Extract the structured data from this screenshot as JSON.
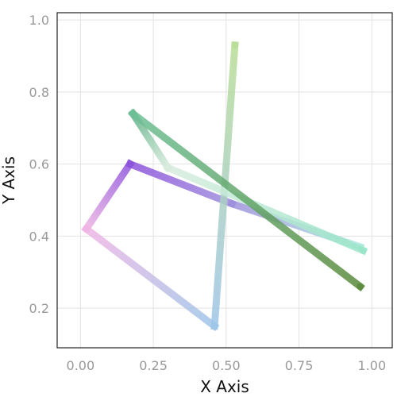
{
  "chart_data": {
    "type": "line",
    "title": "",
    "xlabel": "X Axis",
    "ylabel": "Y Axis",
    "xlim": [
      -0.08,
      1.07
    ],
    "ylim": [
      0.09,
      1.02
    ],
    "x_ticks": [
      0.0,
      0.25,
      0.5,
      0.75,
      1.0
    ],
    "x_tick_labels": [
      "0.00",
      "0.25",
      "0.50",
      "0.75",
      "1.00"
    ],
    "y_ticks": [
      0.2,
      0.4,
      0.6,
      0.8,
      1.0
    ],
    "y_tick_labels": [
      "0.2",
      "0.4",
      "0.6",
      "0.8",
      "1.0"
    ],
    "grid": true,
    "legend": "none",
    "series": [
      {
        "x": [
          0.02,
          0.17,
          0.52,
          0.96
        ],
        "y": [
          0.42,
          0.6,
          0.49,
          0.37
        ],
        "colors": [
          "#efb5e2",
          "#8c52dc",
          "#9e8fdc",
          "#aee9dd"
        ]
      },
      {
        "x": [
          0.02,
          0.46,
          0.53
        ],
        "y": [
          0.42,
          0.15,
          0.93
        ],
        "colors": [
          "#f0b5e5",
          "#9ec5e8",
          "#b9dd95"
        ]
      },
      {
        "x": [
          0.18,
          0.3,
          0.97
        ],
        "y": [
          0.74,
          0.59,
          0.36
        ],
        "colors": [
          "#5cae83",
          "#d8ecde",
          "#99e5c8"
        ]
      },
      {
        "x": [
          0.18,
          0.96
        ],
        "y": [
          0.74,
          0.26
        ],
        "colors": [
          "#6dc096",
          "#5a8a3c"
        ]
      }
    ]
  }
}
